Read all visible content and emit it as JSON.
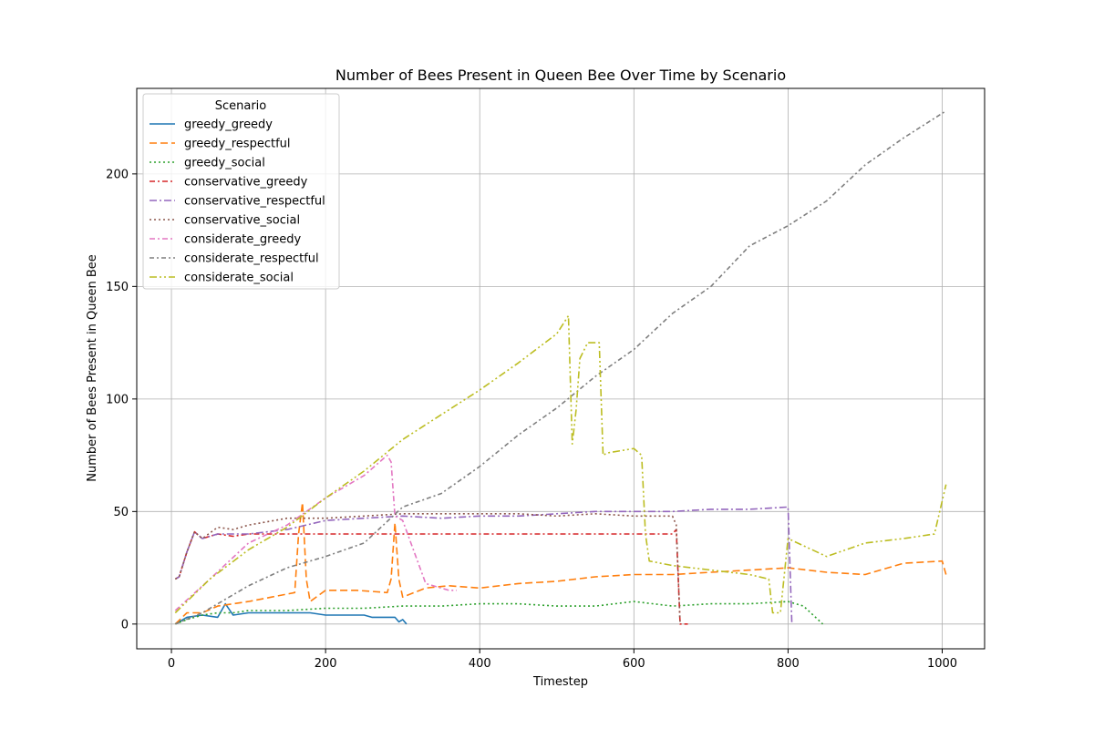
{
  "chart_data": {
    "type": "line",
    "title": "Number of Bees Present in Queen Bee Over Time by Scenario",
    "xlabel": "Timestep",
    "ylabel": "Number of Bees Present in Queen Bee",
    "xlim": [
      -45,
      1055
    ],
    "ylim": [
      -11,
      238
    ],
    "xticks": [
      0,
      200,
      400,
      600,
      800,
      1000
    ],
    "yticks": [
      0,
      50,
      100,
      150,
      200
    ],
    "grid": true,
    "legend": {
      "title": "Scenario",
      "placement": "top-left"
    },
    "series": [
      {
        "name": "greedy_greedy",
        "color": "#1f77b4",
        "dash": "",
        "x": [
          5,
          20,
          40,
          60,
          70,
          80,
          100,
          130,
          160,
          180,
          200,
          250,
          260,
          290,
          295,
          300,
          305
        ],
        "y": [
          0,
          3,
          4,
          3,
          9,
          4,
          5,
          5,
          5,
          5,
          4,
          4,
          3,
          3,
          1,
          2,
          0
        ]
      },
      {
        "name": "greedy_respectful",
        "color": "#ff7f0e",
        "dash": "8,4",
        "x": [
          5,
          20,
          40,
          60,
          80,
          100,
          130,
          160,
          165,
          170,
          175,
          180,
          200,
          240,
          280,
          285,
          290,
          295,
          300,
          330,
          360,
          400,
          450,
          500,
          550,
          600,
          650,
          700,
          750,
          800,
          850,
          900,
          950,
          1000,
          1005
        ],
        "y": [
          0,
          5,
          5,
          8,
          9,
          10,
          12,
          14,
          40,
          54,
          20,
          10,
          15,
          15,
          14,
          20,
          45,
          20,
          12,
          16,
          17,
          16,
          18,
          19,
          21,
          22,
          22,
          23,
          24,
          25,
          23,
          22,
          27,
          28,
          22
        ]
      },
      {
        "name": "greedy_social",
        "color": "#2ca02c",
        "dash": "2,3",
        "x": [
          5,
          20,
          40,
          60,
          80,
          100,
          150,
          200,
          250,
          300,
          350,
          400,
          450,
          500,
          550,
          600,
          650,
          700,
          750,
          800,
          820,
          845
        ],
        "y": [
          0,
          2,
          4,
          5,
          5,
          6,
          6,
          7,
          7,
          8,
          8,
          9,
          9,
          8,
          8,
          10,
          8,
          9,
          9,
          10,
          8,
          0
        ]
      },
      {
        "name": "conservative_greedy",
        "color": "#d62728",
        "dash": "6,3,2,3",
        "x": [
          5,
          10,
          20,
          30,
          40,
          60,
          80,
          100,
          150,
          200,
          250,
          300,
          350,
          400,
          450,
          500,
          550,
          600,
          650,
          655,
          660,
          670
        ],
        "y": [
          20,
          21,
          32,
          41,
          38,
          40,
          39,
          40,
          40,
          40,
          40,
          40,
          40,
          40,
          40,
          40,
          40,
          40,
          40,
          42,
          0,
          0
        ]
      },
      {
        "name": "conservative_respectful",
        "color": "#9467bd",
        "dash": "8,3,2,3",
        "x": [
          5,
          10,
          20,
          30,
          40,
          60,
          80,
          100,
          150,
          200,
          250,
          300,
          350,
          400,
          450,
          500,
          550,
          600,
          650,
          700,
          750,
          800,
          805
        ],
        "y": [
          20,
          21,
          32,
          41,
          38,
          40,
          40,
          40,
          42,
          46,
          47,
          48,
          47,
          48,
          48,
          49,
          50,
          50,
          50,
          51,
          51,
          52,
          0
        ]
      },
      {
        "name": "conservative_social",
        "color": "#8c564b",
        "dash": "2,3",
        "x": [
          5,
          10,
          20,
          30,
          40,
          60,
          80,
          100,
          150,
          200,
          250,
          300,
          350,
          400,
          450,
          500,
          550,
          600,
          650,
          655,
          660
        ],
        "y": [
          20,
          21,
          32,
          41,
          38,
          43,
          42,
          44,
          47,
          47,
          48,
          49,
          49,
          49,
          49,
          48,
          49,
          48,
          48,
          44,
          0
        ]
      },
      {
        "name": "considerate_greedy",
        "color": "#e377c2",
        "dash": "6,3,2,3",
        "x": [
          5,
          50,
          100,
          150,
          200,
          250,
          280,
          285,
          290,
          300,
          330,
          360,
          370
        ],
        "y": [
          6,
          20,
          36,
          44,
          56,
          66,
          75,
          72,
          48,
          46,
          18,
          15,
          15
        ]
      },
      {
        "name": "considerate_respectful",
        "color": "#7f7f7f",
        "dash": "5,3,2,3",
        "x": [
          5,
          40,
          100,
          150,
          200,
          250,
          300,
          350,
          400,
          450,
          500,
          550,
          600,
          650,
          700,
          750,
          800,
          850,
          900,
          950,
          1005
        ],
        "y": [
          0,
          5,
          17,
          25,
          30,
          36,
          52,
          58,
          70,
          84,
          96,
          110,
          122,
          138,
          150,
          168,
          177,
          188,
          204,
          216,
          228
        ]
      },
      {
        "name": "considerate_social",
        "color": "#bcbd22",
        "dash": "8,3,2,3,2,3",
        "x": [
          5,
          50,
          100,
          150,
          200,
          250,
          300,
          350,
          400,
          450,
          500,
          515,
          520,
          525,
          530,
          540,
          555,
          560,
          565,
          600,
          610,
          615,
          620,
          650,
          700,
          750,
          775,
          780,
          790,
          800,
          850,
          900,
          950,
          990,
          1005
        ],
        "y": [
          5,
          20,
          33,
          43,
          56,
          68,
          82,
          93,
          104,
          116,
          129,
          137,
          80,
          95,
          118,
          125,
          125,
          75,
          76,
          78,
          75,
          40,
          28,
          26,
          24,
          22,
          20,
          5,
          5,
          38,
          30,
          36,
          38,
          40,
          62
        ]
      }
    ]
  }
}
